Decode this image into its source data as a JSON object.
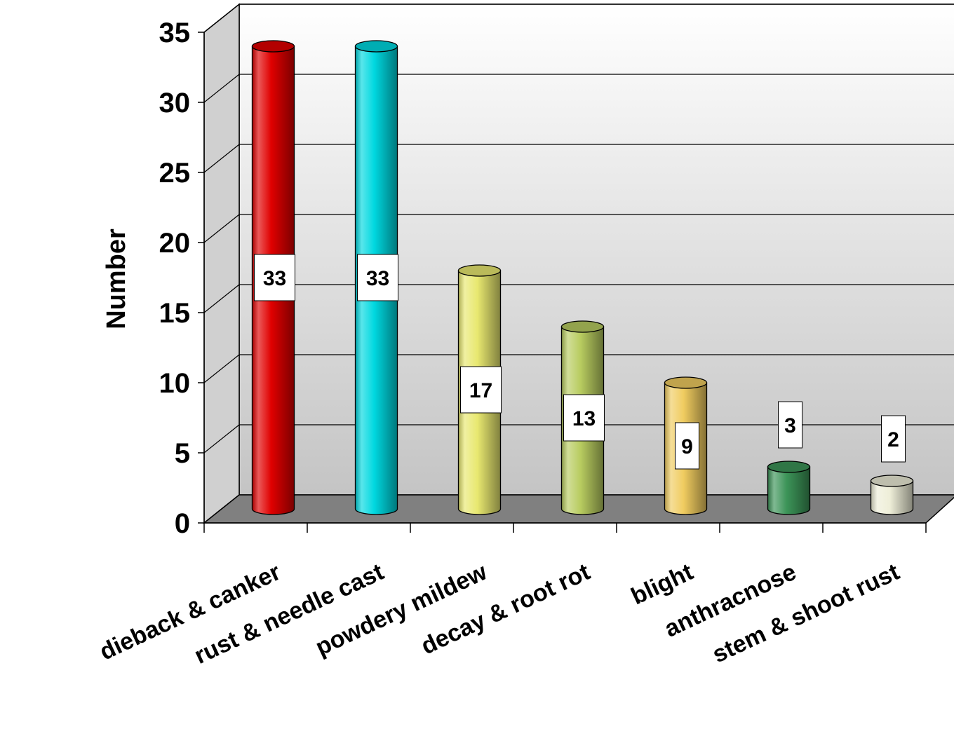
{
  "chart_data": {
    "type": "bar",
    "title": "",
    "xlabel": "",
    "ylabel": "Number",
    "ylim": [
      0,
      35
    ],
    "yticks": [
      0,
      5,
      10,
      15,
      20,
      25,
      30,
      35
    ],
    "categories": [
      "dieback & canker",
      "rust & needle cast",
      "powdery mildew",
      "decay & root rot",
      "blight",
      "anthracnose",
      "stem & shoot rust"
    ],
    "values": [
      33,
      33,
      17,
      13,
      9,
      3,
      2
    ],
    "data_labels": [
      "33",
      "33",
      "17",
      "13",
      "9",
      "3",
      "2"
    ],
    "bar_colors": [
      "#e00000",
      "#00d8e0",
      "#e8e870",
      "#b8cc60",
      "#f0cc60",
      "#3c9458",
      "#eeeed8"
    ],
    "grid": true,
    "legend": "none",
    "style": "3d-cylinder"
  }
}
